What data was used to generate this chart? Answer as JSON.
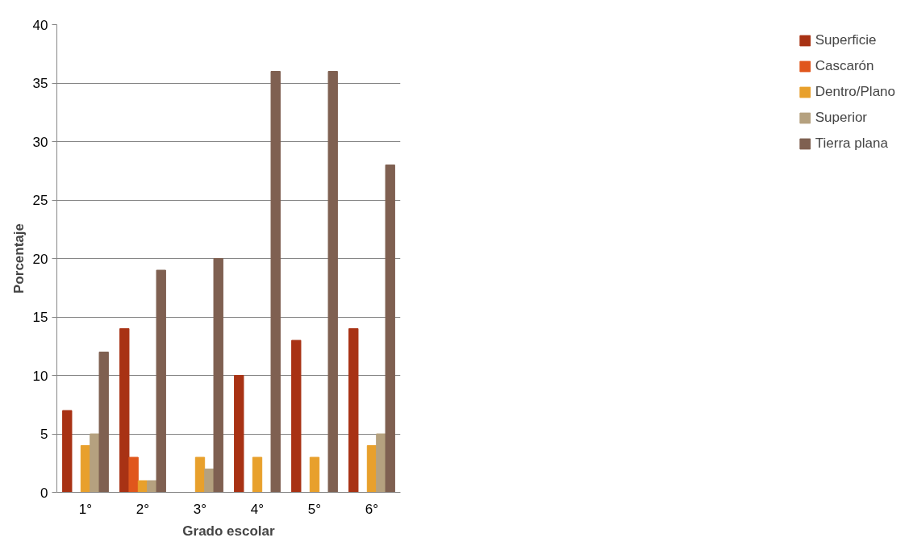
{
  "chart_data": {
    "type": "bar",
    "xlabel": "Grado escolar",
    "ylabel": "Porcentaje",
    "categories": [
      "1°",
      "2°",
      "3°",
      "4°",
      "5°",
      "6°"
    ],
    "series": [
      {
        "name": "Superficie",
        "color": "#a83214",
        "values": [
          7,
          14,
          0,
          10,
          13,
          14
        ]
      },
      {
        "name": "Cascarón",
        "color": "#e0561c",
        "values": [
          0,
          3,
          0,
          0,
          0,
          0
        ]
      },
      {
        "name": "Dentro/Plano",
        "color": "#e8a02c",
        "values": [
          4,
          1,
          3,
          3,
          3,
          4
        ]
      },
      {
        "name": "Superior",
        "color": "#b5a17f",
        "values": [
          5,
          1,
          2,
          0,
          0,
          5
        ]
      },
      {
        "name": "Tierra plana",
        "color": "#7f6051",
        "values": [
          12,
          19,
          20,
          36,
          36,
          28
        ]
      }
    ],
    "ylim": [
      0,
      40
    ],
    "yticks": [
      0,
      5,
      10,
      15,
      20,
      25,
      30,
      35,
      40
    ],
    "grid": "y",
    "legend": "right"
  }
}
